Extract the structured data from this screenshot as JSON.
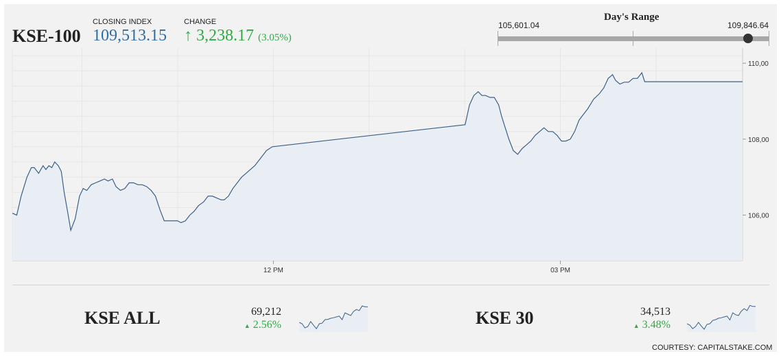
{
  "header": {
    "index_name": "KSE-100",
    "closing_label": "CLOSING INDEX",
    "closing_value": "109,513.15",
    "change_label": "CHANGE",
    "change_arrow": "↑",
    "change_value": "3,238.17",
    "change_percent": "(3.05%)"
  },
  "days_range": {
    "title": "Day's Range",
    "low": "105,601.04",
    "high": "109,846.64",
    "current": 109513.15
  },
  "colors": {
    "line": "#3b5f86",
    "fill": "#e8eef4",
    "positive": "#2faa44",
    "closing": "#2e6da4"
  },
  "chart_data": {
    "type": "area",
    "x_ticks": [
      "12 PM",
      "03 PM"
    ],
    "y_ticks": [
      "110,00",
      "108,00",
      "106,00"
    ],
    "ylim": [
      104800,
      110400
    ],
    "grid": true,
    "points": [
      [
        0.0,
        106050
      ],
      [
        0.006,
        106000
      ],
      [
        0.012,
        106500
      ],
      [
        0.02,
        107000
      ],
      [
        0.026,
        107250
      ],
      [
        0.03,
        107250
      ],
      [
        0.036,
        107100
      ],
      [
        0.042,
        107300
      ],
      [
        0.046,
        107200
      ],
      [
        0.05,
        107300
      ],
      [
        0.054,
        107250
      ],
      [
        0.058,
        107400
      ],
      [
        0.063,
        107300
      ],
      [
        0.067,
        107150
      ],
      [
        0.071,
        106600
      ],
      [
        0.076,
        106050
      ],
      [
        0.08,
        105600
      ],
      [
        0.086,
        105900
      ],
      [
        0.092,
        106500
      ],
      [
        0.097,
        106700
      ],
      [
        0.102,
        106650
      ],
      [
        0.108,
        106800
      ],
      [
        0.114,
        106850
      ],
      [
        0.12,
        106900
      ],
      [
        0.126,
        106950
      ],
      [
        0.131,
        106900
      ],
      [
        0.137,
        106950
      ],
      [
        0.142,
        106750
      ],
      [
        0.148,
        106650
      ],
      [
        0.154,
        106700
      ],
      [
        0.16,
        106850
      ],
      [
        0.166,
        106850
      ],
      [
        0.172,
        106800
      ],
      [
        0.178,
        106800
      ],
      [
        0.184,
        106750
      ],
      [
        0.19,
        106650
      ],
      [
        0.196,
        106500
      ],
      [
        0.202,
        106150
      ],
      [
        0.208,
        105850
      ],
      [
        0.214,
        105850
      ],
      [
        0.22,
        105850
      ],
      [
        0.226,
        105850
      ],
      [
        0.231,
        105800
      ],
      [
        0.237,
        105850
      ],
      [
        0.243,
        106000
      ],
      [
        0.249,
        106100
      ],
      [
        0.255,
        106250
      ],
      [
        0.262,
        106350
      ],
      [
        0.268,
        106500
      ],
      [
        0.274,
        106500
      ],
      [
        0.28,
        106450
      ],
      [
        0.286,
        106400
      ],
      [
        0.29,
        106400
      ],
      [
        0.296,
        106500
      ],
      [
        0.302,
        106700
      ],
      [
        0.308,
        106850
      ],
      [
        0.314,
        107000
      ],
      [
        0.32,
        107100
      ],
      [
        0.326,
        107200
      ],
      [
        0.332,
        107300
      ],
      [
        0.34,
        107500
      ],
      [
        0.348,
        107700
      ],
      [
        0.356,
        107800
      ],
      [
        0.62,
        108380
      ],
      [
        0.626,
        108900
      ],
      [
        0.632,
        109150
      ],
      [
        0.638,
        109250
      ],
      [
        0.643,
        109150
      ],
      [
        0.648,
        109150
      ],
      [
        0.654,
        109100
      ],
      [
        0.66,
        109100
      ],
      [
        0.666,
        108900
      ],
      [
        0.67,
        108600
      ],
      [
        0.675,
        108300
      ],
      [
        0.68,
        108000
      ],
      [
        0.686,
        107700
      ],
      [
        0.692,
        107600
      ],
      [
        0.698,
        107750
      ],
      [
        0.704,
        107850
      ],
      [
        0.71,
        107950
      ],
      [
        0.716,
        108100
      ],
      [
        0.722,
        108200
      ],
      [
        0.728,
        108300
      ],
      [
        0.734,
        108200
      ],
      [
        0.74,
        108200
      ],
      [
        0.746,
        108100
      ],
      [
        0.752,
        107950
      ],
      [
        0.758,
        107950
      ],
      [
        0.764,
        108000
      ],
      [
        0.77,
        108200
      ],
      [
        0.776,
        108500
      ],
      [
        0.782,
        108650
      ],
      [
        0.788,
        108800
      ],
      [
        0.796,
        109050
      ],
      [
        0.804,
        109200
      ],
      [
        0.81,
        109350
      ],
      [
        0.816,
        109600
      ],
      [
        0.822,
        109700
      ],
      [
        0.826,
        109550
      ],
      [
        0.832,
        109450
      ],
      [
        0.838,
        109500
      ],
      [
        0.844,
        109500
      ],
      [
        0.85,
        109600
      ],
      [
        0.856,
        109600
      ],
      [
        0.862,
        109750
      ],
      [
        0.866,
        109513
      ],
      [
        1.0,
        109513
      ]
    ]
  },
  "sub_indices": [
    {
      "name": "KSE ALL",
      "value": "69,212",
      "change": "2.56%",
      "arrow": "▲",
      "sparkline": [
        0.35,
        0.3,
        0.15,
        0.2,
        0.38,
        0.25,
        0.12,
        0.3,
        0.32,
        0.45,
        0.46,
        0.5,
        0.52,
        0.55,
        0.58,
        0.45,
        0.7,
        0.65,
        0.6,
        0.75,
        0.82,
        0.78,
        0.95,
        0.92,
        0.92
      ]
    },
    {
      "name": "KSE 30",
      "value": "34,513",
      "change": "3.48%",
      "arrow": "▲",
      "sparkline": [
        0.3,
        0.25,
        0.12,
        0.2,
        0.35,
        0.22,
        0.1,
        0.28,
        0.3,
        0.42,
        0.45,
        0.5,
        0.52,
        0.55,
        0.58,
        0.44,
        0.7,
        0.63,
        0.6,
        0.76,
        0.85,
        0.78,
        0.97,
        0.93,
        0.93
      ]
    }
  ],
  "footer": {
    "courtesy": "COURTESY: CAPITALSTAKE.COM"
  }
}
